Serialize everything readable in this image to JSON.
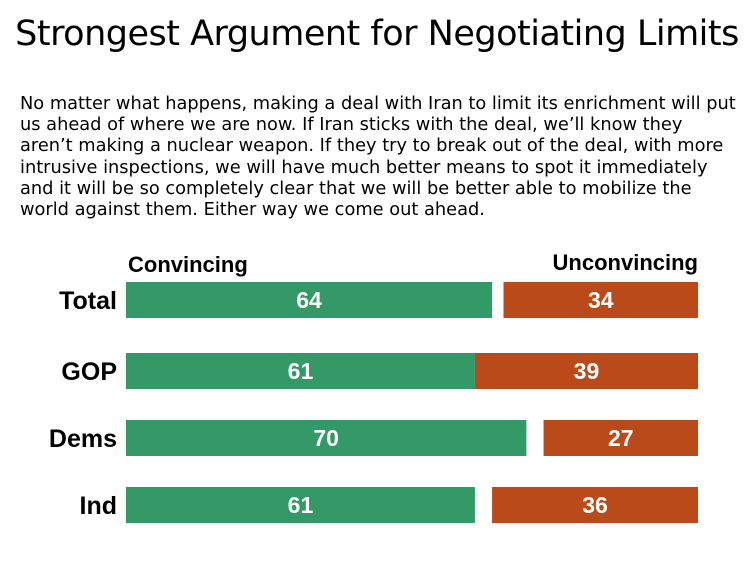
{
  "title": "Strongest Argument for Negotiating Limits",
  "argument": "No matter what happens, making a deal with Iran to limit its enrichment will put us ahead of where we are now. If Iran sticks with the deal, we’ll know they aren’t making a nuclear weapon. If they try to break out of the deal, with more intrusive inspections, we will have much better means to spot it immediately and it will be so completely clear that we will be better able to mobilize the world against them.  Either way we come out ahead.",
  "colors": {
    "convincing": "#339966",
    "unconvincing": "#bb4a1a"
  },
  "chart_data": {
    "type": "bar",
    "orientation": "horizontal",
    "categories": [
      "Total",
      "GOP",
      "Dems",
      "Ind"
    ],
    "series": [
      {
        "name": "Convincing",
        "values": [
          64,
          61,
          70,
          61
        ],
        "color": "#339966"
      },
      {
        "name": "Unconvincing",
        "values": [
          34,
          39,
          27,
          36
        ],
        "color": "#bb4a1a"
      }
    ],
    "grid": false,
    "legend": "top"
  }
}
